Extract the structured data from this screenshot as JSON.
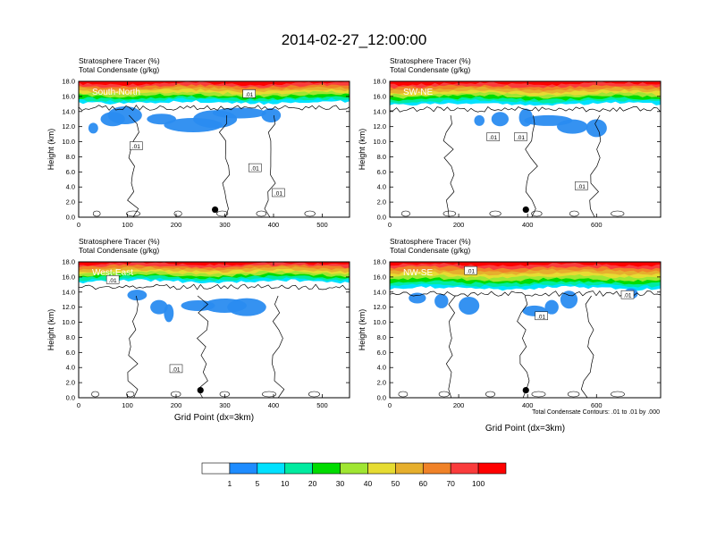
{
  "figure": {
    "title": "2014-02-27_12:00:00",
    "footnote": "Total Condensate Contours: .01 to .01 by .000"
  },
  "colorbar": {
    "colors": [
      "#ffffff",
      "#1e8cff",
      "#00e1ff",
      "#00eba0",
      "#00dc00",
      "#a0e632",
      "#e6dc32",
      "#e6af2d",
      "#f08228",
      "#fa3c3c",
      "#ff0000"
    ],
    "labels": [
      "1",
      "5",
      "10",
      "20",
      "30",
      "40",
      "50",
      "60",
      "70",
      "100"
    ]
  },
  "chart_data": [
    {
      "type": "heatmap",
      "panel": "South-North",
      "title_lines": [
        "Stratosphere Tracer   (%)",
        "Total Condensate   (g/kg)"
      ],
      "ylabel": "Height (km)",
      "xlabel": "",
      "xlim": [
        0,
        556
      ],
      "ylim": [
        0,
        18
      ],
      "xticks": [
        0,
        100,
        200,
        300,
        400,
        500
      ],
      "yticks": [
        "0.0",
        "2.0",
        "4.0",
        "6.0",
        "8.0",
        "10.0",
        "12.0",
        "14.0",
        "16.0",
        "18.0"
      ],
      "tropopause_base_km": 15.2,
      "cloud_blobs": [
        [
          30,
          11.8,
          10
        ],
        [
          70,
          13.0,
          25
        ],
        [
          95,
          13.5,
          35
        ],
        [
          170,
          13.0,
          30
        ],
        [
          235,
          12.2,
          60
        ],
        [
          280,
          13.0,
          45
        ],
        [
          330,
          13.8,
          55
        ],
        [
          395,
          13.5,
          20
        ]
      ],
      "contour_labels": [
        {
          "x": 350,
          "y": 16.3,
          "t": ".01"
        },
        {
          "x": 118,
          "y": 9.4,
          "t": ".01"
        },
        {
          "x": 362,
          "y": 6.5,
          "t": ".01"
        },
        {
          "x": 410,
          "y": 3.2,
          "t": ".01"
        }
      ],
      "location_dot": {
        "x": 280,
        "y": 1.0
      }
    },
    {
      "type": "heatmap",
      "panel": "SW-NE",
      "title_lines": [
        "Stratosphere Tracer   (%)",
        "Total Condensate   (g/kg)"
      ],
      "ylabel": "Height (km)",
      "xlabel": "",
      "xlim": [
        0,
        786
      ],
      "ylim": [
        0,
        18
      ],
      "xticks": [
        0,
        200,
        400,
        600
      ],
      "yticks": [
        "0.0",
        "2.0",
        "4.0",
        "6.0",
        "8.0",
        "10.0",
        "12.0",
        "14.0",
        "16.0",
        "18.0"
      ],
      "tropopause_base_km": 15.0,
      "cloud_blobs": [
        [
          260,
          12.8,
          15
        ],
        [
          320,
          13.0,
          25
        ],
        [
          395,
          13.2,
          20
        ],
        [
          460,
          12.8,
          70
        ],
        [
          530,
          12.0,
          45
        ],
        [
          600,
          11.8,
          30
        ]
      ],
      "contour_labels": [
        {
          "x": 300,
          "y": 10.6,
          "t": ".01"
        },
        {
          "x": 380,
          "y": 10.6,
          "t": ".01"
        },
        {
          "x": 556,
          "y": 4.1,
          "t": ".01"
        }
      ],
      "location_dot": {
        "x": 395,
        "y": 1.0
      }
    },
    {
      "type": "heatmap",
      "panel": "West-East",
      "title_lines": [
        "Stratosphere Tracer   (%)",
        "Total Condensate   (g/kg)"
      ],
      "ylabel": "Height (km)",
      "xlabel": "Grid Point (dx=3km)",
      "xlim": [
        0,
        556
      ],
      "ylim": [
        0,
        18
      ],
      "xticks": [
        0,
        100,
        200,
        300,
        400,
        500
      ],
      "yticks": [
        "0.0",
        "2.0",
        "4.0",
        "6.0",
        "8.0",
        "10.0",
        "12.0",
        "14.0",
        "16.0",
        "18.0"
      ],
      "tropopause_base_km": 15.4,
      "cloud_blobs": [
        [
          120,
          13.6,
          20
        ],
        [
          165,
          12.0,
          18
        ],
        [
          185,
          11.2,
          10
        ],
        [
          245,
          12.2,
          35
        ],
        [
          300,
          12.2,
          45
        ],
        [
          345,
          12.0,
          40
        ]
      ],
      "contour_labels": [
        {
          "x": 70,
          "y": 15.6,
          "t": ".01"
        },
        {
          "x": 200,
          "y": 3.8,
          "t": ".01"
        }
      ],
      "location_dot": {
        "x": 250,
        "y": 1.0
      }
    },
    {
      "type": "heatmap",
      "panel": "NW-SE",
      "title_lines": [
        "Stratosphere Tracer   (%)",
        "Total Condensate   (g/kg)"
      ],
      "ylabel": "Height (km)",
      "xlabel": "Grid Point (dx=3km)",
      "xlim": [
        0,
        786
      ],
      "ylim": [
        0,
        18
      ],
      "xticks": [
        0,
        200,
        400,
        600
      ],
      "yticks": [
        "0.0",
        "2.0",
        "4.0",
        "6.0",
        "8.0",
        "10.0",
        "12.0",
        "14.0",
        "16.0",
        "18.0"
      ],
      "tropopause_base_km": 14.5,
      "cloud_blobs": [
        [
          80,
          13.2,
          25
        ],
        [
          150,
          12.8,
          20
        ],
        [
          230,
          12.2,
          30
        ],
        [
          420,
          11.5,
          35
        ],
        [
          470,
          12.0,
          20
        ],
        [
          520,
          13.0,
          25
        ],
        [
          700,
          13.8,
          20
        ]
      ],
      "contour_labels": [
        {
          "x": 235,
          "y": 16.8,
          "t": ".01"
        },
        {
          "x": 440,
          "y": 10.8,
          "t": ".01"
        },
        {
          "x": 690,
          "y": 13.6,
          "t": ".01"
        }
      ],
      "location_dot": {
        "x": 395,
        "y": 1.0
      }
    }
  ]
}
